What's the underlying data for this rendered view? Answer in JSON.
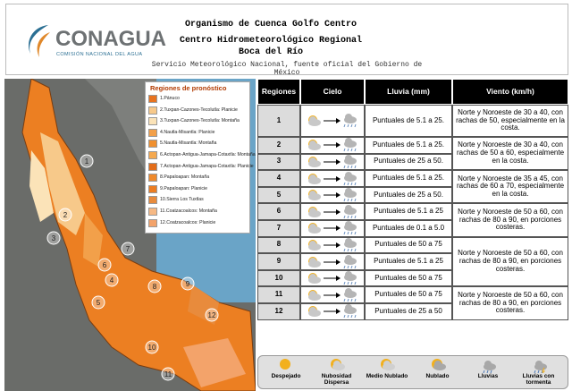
{
  "header": {
    "logo": "CONAGUA",
    "logo_sub": "COMISIÓN NACIONAL DEL AGUA",
    "line1": "Organismo de Cuenca Golfo Centro",
    "line2": "Centro Hidrometeorológico Regional",
    "line3": "Boca del Río",
    "line4": "Servicio Meteorológico Nacional, fuente oficial del Gobierno de México"
  },
  "map": {
    "legend_title": "Regiones de pronóstico",
    "regions": [
      {
        "label": "1.Pánuco",
        "color": "#e8731f"
      },
      {
        "label": "2.Tuxpan-Cazones-Tecolutla: Planicie",
        "color": "#f7c98a"
      },
      {
        "label": "3.Tuxpan-Cazones-Tecolutla: Montaña",
        "color": "#fbe3b8"
      },
      {
        "label": "4.Nautla-Misantla: Planicie",
        "color": "#f2a04a"
      },
      {
        "label": "5.Nautla-Misantla: Montaña",
        "color": "#f0902f"
      },
      {
        "label": "6.Actopan-Antigua-Jamapa-Cotaxtla: Montaña",
        "color": "#f5a94f"
      },
      {
        "label": "7.Actopan-Antigua-Jamapa-Cotaxtla: Planicie",
        "color": "#e36d1a"
      },
      {
        "label": "8.Papaloapan: Montaña",
        "color": "#ef8a2c"
      },
      {
        "label": "9.Papaloapan: Planicie",
        "color": "#ec7d22"
      },
      {
        "label": "10.Sierra Los Tuxtlas",
        "color": "#e88b3c"
      },
      {
        "label": "11.Coatzacoalcos: Montaña",
        "color": "#f6b985"
      },
      {
        "label": "12.Coatzacoalcos: Planicie",
        "color": "#f3a36a"
      }
    ],
    "markers": [
      "1",
      "2",
      "3",
      "4",
      "5",
      "6",
      "7",
      "8",
      "9",
      "10",
      "11",
      "12"
    ]
  },
  "table": {
    "headers": [
      "Regiones",
      "Cielo",
      "Lluvia (mm)",
      "Viento (km/h)"
    ],
    "rows": [
      {
        "region": "1",
        "rain": "Puntuales de 5.1 a 25."
      },
      {
        "region": "2",
        "rain": "Puntuales de 5.1 a 25."
      },
      {
        "region": "3",
        "rain": "Puntuales de 25 a 50."
      },
      {
        "region": "4",
        "rain": "Puntuales de 5.1 a 25."
      },
      {
        "region": "5",
        "rain": "Puntuales de 25 a 50."
      },
      {
        "region": "6",
        "rain": "Puntuales de 5.1 a 25"
      },
      {
        "region": "7",
        "rain": "Puntuales de 0.1 a 5.0"
      },
      {
        "region": "8",
        "rain": "Puntuales de 50 a 75"
      },
      {
        "region": "9",
        "rain": "Puntuales de 5.1 a 25"
      },
      {
        "region": "10",
        "rain": "Puntuales de 50 a 75"
      },
      {
        "region": "11",
        "rain": "Puntuales de 50 a 75"
      },
      {
        "region": "12",
        "rain": "Puntuales de 25 a 50"
      }
    ],
    "wind": [
      "Norte y Noroeste de 30 a 40, con rachas de 50, especialmente en la costa.",
      "Norte y Noroeste de 30 a 40, con rachas de 50 a 60, especialmente en la costa.",
      "Norte y Noroeste de 35 a 45, con rachas de 60 a 70, especialmente en la costa.",
      "Norte y Noroeste de 50 a 60, con rachas de 80 a 90, en porciones costeras.",
      "Norte y Noroeste de 50 a 60, con rachas de 80 a 90, en porciones costeras.",
      "Norte y Noroeste de 50 a 60, con rachas de 80 a 90, en porciones costeras."
    ]
  },
  "sky_legend": [
    "Despejado",
    "Nubosidad Dispersa",
    "Medio Nublado",
    "Nublado",
    "Lluvias",
    "Lluvias con tormenta"
  ]
}
